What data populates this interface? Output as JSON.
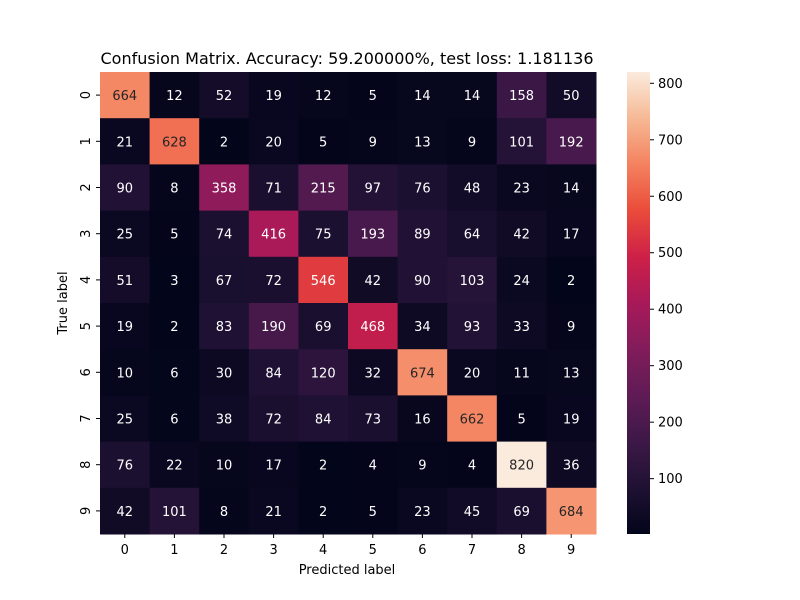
{
  "chart_data": {
    "type": "heatmap",
    "title": "Confusion Matrix. Accuracy: 59.200000%, test loss: 1.181136",
    "xlabel": "Predicted label",
    "ylabel": "True label",
    "x_categories": [
      "0",
      "1",
      "2",
      "3",
      "4",
      "5",
      "6",
      "7",
      "8",
      "9"
    ],
    "y_categories": [
      "0",
      "1",
      "2",
      "3",
      "4",
      "5",
      "6",
      "7",
      "8",
      "9"
    ],
    "values": [
      [
        664,
        12,
        52,
        19,
        12,
        5,
        14,
        14,
        158,
        50
      ],
      [
        21,
        628,
        2,
        20,
        5,
        9,
        13,
        9,
        101,
        192
      ],
      [
        90,
        8,
        358,
        71,
        215,
        97,
        76,
        48,
        23,
        14
      ],
      [
        25,
        5,
        74,
        416,
        75,
        193,
        89,
        64,
        42,
        17
      ],
      [
        51,
        3,
        67,
        72,
        546,
        42,
        90,
        103,
        24,
        2
      ],
      [
        19,
        2,
        83,
        190,
        69,
        468,
        34,
        93,
        33,
        9
      ],
      [
        10,
        6,
        30,
        84,
        120,
        32,
        674,
        20,
        11,
        13
      ],
      [
        25,
        6,
        38,
        72,
        84,
        73,
        16,
        662,
        5,
        19
      ],
      [
        76,
        22,
        10,
        17,
        2,
        4,
        9,
        4,
        820,
        36
      ],
      [
        42,
        101,
        8,
        21,
        2,
        5,
        23,
        45,
        69,
        684
      ]
    ],
    "colorscale": "rocket",
    "vmin": 2,
    "vmax": 820,
    "colorbar_ticks": [
      100,
      200,
      300,
      400,
      500,
      600,
      700,
      800
    ]
  }
}
